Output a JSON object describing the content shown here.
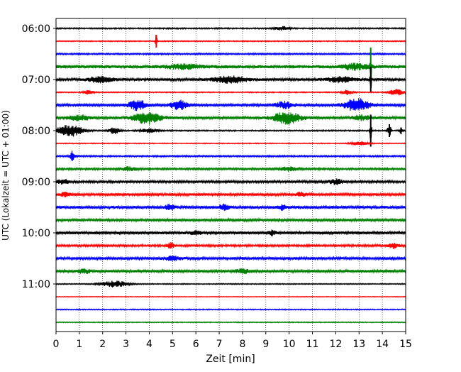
{
  "chart_data": {
    "type": "line",
    "title": "",
    "xlabel": "Zeit  [min]",
    "ylabel": "UTC (Lokalzeit = UTC + 01:00)",
    "xlim": [
      0,
      15
    ],
    "x_ticks": [
      "0",
      "1",
      "2",
      "3",
      "4",
      "5",
      "6",
      "7",
      "8",
      "9",
      "10",
      "11",
      "12",
      "13",
      "14",
      "15"
    ],
    "y_tick_labels": [
      "06:00",
      "07:00",
      "08:00",
      "09:00",
      "10:00",
      "11:00"
    ],
    "y_tick_traces": [
      0,
      4,
      8,
      12,
      16,
      20
    ],
    "grid": "vertical dotted lines at each minute",
    "legend": "none",
    "trace_start": "06:00",
    "trace_interval_minutes": 15,
    "trace_colors": [
      "#000000",
      "#ff0000",
      "#0000ff",
      "#008000"
    ],
    "traces": [
      {
        "start": "06:00",
        "amplitude": 1.0,
        "events": [
          {
            "t": 9.7,
            "amp": 3.0,
            "dur": 0.4
          }
        ]
      },
      {
        "start": "06:15",
        "amplitude": 0.8,
        "events": [
          {
            "t": 4.3,
            "amp": 10.0,
            "dur": 0.05
          }
        ]
      },
      {
        "start": "06:30",
        "amplitude": 1.2,
        "events": []
      },
      {
        "start": "06:45",
        "amplitude": 2.5,
        "events": [
          {
            "t": 5.5,
            "amp": 3.0,
            "dur": 1.0
          },
          {
            "t": 12.8,
            "amp": 4.0,
            "dur": 0.8
          },
          {
            "t": 13.5,
            "amp": 30.0,
            "dur": 0.05
          }
        ]
      },
      {
        "start": "07:00",
        "amplitude": 2.0,
        "events": [
          {
            "t": 1.9,
            "amp": 4.0,
            "dur": 0.8
          },
          {
            "t": 7.5,
            "amp": 5.0,
            "dur": 1.0
          },
          {
            "t": 12.2,
            "amp": 4.0,
            "dur": 0.8
          },
          {
            "t": 13.5,
            "amp": 20.0,
            "dur": 0.05
          }
        ]
      },
      {
        "start": "07:15",
        "amplitude": 0.8,
        "events": [
          {
            "t": 1.4,
            "amp": 3.0,
            "dur": 0.3
          },
          {
            "t": 12.5,
            "amp": 4.0,
            "dur": 0.3
          },
          {
            "t": 14.6,
            "amp": 5.0,
            "dur": 0.4
          }
        ]
      },
      {
        "start": "07:30",
        "amplitude": 2.0,
        "events": [
          {
            "t": 3.5,
            "amp": 8.0,
            "dur": 0.5
          },
          {
            "t": 5.3,
            "amp": 7.0,
            "dur": 0.5
          },
          {
            "t": 9.8,
            "amp": 5.0,
            "dur": 0.5
          },
          {
            "t": 12.9,
            "amp": 10.0,
            "dur": 0.7
          }
        ]
      },
      {
        "start": "07:45",
        "amplitude": 2.0,
        "events": [
          {
            "t": 1.0,
            "amp": 4.0,
            "dur": 0.6
          },
          {
            "t": 3.9,
            "amp": 9.0,
            "dur": 0.8
          },
          {
            "t": 9.9,
            "amp": 9.0,
            "dur": 0.8
          },
          {
            "t": 13.1,
            "amp": 4.0,
            "dur": 0.5
          }
        ]
      },
      {
        "start": "08:00",
        "amplitude": 1.0,
        "events": [
          {
            "t": 0.6,
            "amp": 9.0,
            "dur": 0.8
          },
          {
            "t": 2.5,
            "amp": 5.0,
            "dur": 0.3
          },
          {
            "t": 4.0,
            "amp": 3.0,
            "dur": 0.5
          },
          {
            "t": 13.5,
            "amp": 25.0,
            "dur": 0.05
          },
          {
            "t": 14.3,
            "amp": 10.0,
            "dur": 0.1
          },
          {
            "t": 14.8,
            "amp": 5.0,
            "dur": 0.1
          }
        ]
      },
      {
        "start": "08:15",
        "amplitude": 0.7,
        "events": [
          {
            "t": 13.0,
            "amp": 3.0,
            "dur": 0.5
          }
        ]
      },
      {
        "start": "08:30",
        "amplitude": 1.2,
        "events": [
          {
            "t": 0.7,
            "amp": 8.0,
            "dur": 0.15
          }
        ]
      },
      {
        "start": "08:45",
        "amplitude": 1.5,
        "events": [
          {
            "t": 3.1,
            "amp": 3.0,
            "dur": 0.5
          },
          {
            "t": 10.0,
            "amp": 3.0,
            "dur": 0.5
          }
        ]
      },
      {
        "start": "09:00",
        "amplitude": 1.8,
        "events": [
          {
            "t": 0.3,
            "amp": 4.0,
            "dur": 0.3
          },
          {
            "t": 12.0,
            "amp": 4.0,
            "dur": 0.4
          }
        ]
      },
      {
        "start": "09:15",
        "amplitude": 2.0,
        "events": [
          {
            "t": 0.4,
            "amp": 3.0,
            "dur": 0.3
          },
          {
            "t": 10.5,
            "amp": 3.0,
            "dur": 0.3
          }
        ]
      },
      {
        "start": "09:30",
        "amplitude": 2.2,
        "events": [
          {
            "t": 4.9,
            "amp": 4.0,
            "dur": 0.3
          },
          {
            "t": 7.2,
            "amp": 4.0,
            "dur": 0.3
          },
          {
            "t": 9.7,
            "amp": 4.0,
            "dur": 0.2
          }
        ]
      },
      {
        "start": "09:45",
        "amplitude": 2.0,
        "events": []
      },
      {
        "start": "10:00",
        "amplitude": 2.2,
        "events": [
          {
            "t": 6.0,
            "amp": 3.0,
            "dur": 0.3
          },
          {
            "t": 9.3,
            "amp": 4.0,
            "dur": 0.2
          }
        ]
      },
      {
        "start": "10:15",
        "amplitude": 1.6,
        "events": [
          {
            "t": 4.9,
            "amp": 5.0,
            "dur": 0.2
          },
          {
            "t": 14.5,
            "amp": 4.0,
            "dur": 0.3
          }
        ]
      },
      {
        "start": "10:30",
        "amplitude": 2.0,
        "events": [
          {
            "t": 5.0,
            "amp": 3.0,
            "dur": 0.5
          }
        ]
      },
      {
        "start": "10:45",
        "amplitude": 2.0,
        "events": [
          {
            "t": 1.2,
            "amp": 3.0,
            "dur": 0.4
          },
          {
            "t": 8.0,
            "amp": 3.0,
            "dur": 0.4
          }
        ]
      },
      {
        "start": "11:00",
        "amplitude": 0.8,
        "events": [
          {
            "t": 2.5,
            "amp": 5.0,
            "dur": 0.8
          }
        ]
      },
      {
        "start": "11:15",
        "amplitude": 0.5,
        "events": []
      },
      {
        "start": "11:30",
        "amplitude": 0.8,
        "events": []
      },
      {
        "start": "11:45",
        "amplitude": 0.7,
        "events": []
      }
    ]
  }
}
